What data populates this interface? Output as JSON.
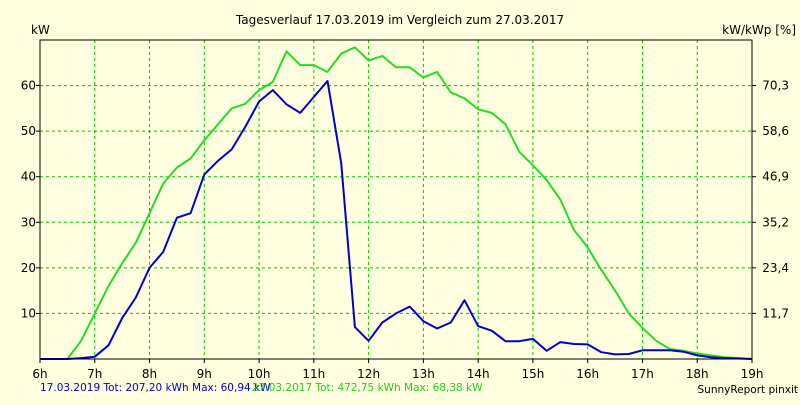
{
  "chart_data": {
    "type": "line",
    "title": "Tagesverlauf 17.03.2019 im Vergleich zum 27.03.2017",
    "ylabel_left": "kW",
    "ylabel_right": "kW/kWp [%]",
    "xlim": [
      6,
      19
    ],
    "ylim": [
      0,
      70
    ],
    "x_ticks": [
      6,
      7,
      8,
      9,
      10,
      11,
      12,
      13,
      14,
      15,
      16,
      17,
      18,
      19
    ],
    "x_tick_labels": [
      "6h",
      "7h",
      "8h",
      "9h",
      "10h",
      "11h",
      "12h",
      "13h",
      "14h",
      "15h",
      "16h",
      "17h",
      "18h",
      "19h"
    ],
    "y_ticks": [
      10,
      20,
      30,
      40,
      50,
      60
    ],
    "y_tick_labels": [
      "10",
      "20",
      "30",
      "40",
      "50",
      "60"
    ],
    "y2_ticks": [
      10,
      20,
      30,
      40,
      50,
      60
    ],
    "y2_tick_labels": [
      "11,7",
      "23,4",
      "35,2",
      "46,9",
      "58,6",
      "70,3"
    ],
    "grid": true,
    "colors": {
      "background": "#ffffe0",
      "grid": "#00c000",
      "series_2019": "#0000d0",
      "series_2017": "#22dd22"
    },
    "series": [
      {
        "name": "17.03.2019",
        "color": "#0000d0",
        "x": [
          6.0,
          6.25,
          6.5,
          6.75,
          7.0,
          7.25,
          7.5,
          7.75,
          8.0,
          8.25,
          8.5,
          8.75,
          9.0,
          9.25,
          9.5,
          9.75,
          10.0,
          10.25,
          10.5,
          10.75,
          11.0,
          11.25,
          11.5,
          11.75,
          12.0,
          12.25,
          12.5,
          12.75,
          13.0,
          13.25,
          13.5,
          13.75,
          14.0,
          14.25,
          14.5,
          14.75,
          15.0,
          15.25,
          15.5,
          15.75,
          16.0,
          16.25,
          16.5,
          16.75,
          17.0,
          17.25,
          17.5,
          17.75,
          18.0,
          18.25,
          18.5,
          18.75,
          19.0
        ],
        "values": [
          0,
          0,
          0,
          0.2,
          0.5,
          3,
          9,
          13.5,
          20,
          23.5,
          31,
          32,
          40.5,
          43.5,
          46,
          51,
          56.5,
          59,
          55.9,
          54,
          57.5,
          61,
          43,
          7,
          4,
          8,
          10,
          11.5,
          8.3,
          6.7,
          8,
          12.9,
          7.2,
          6.2,
          3.9,
          3.9,
          4.4,
          1.8,
          3.7,
          3.3,
          3.2,
          1.5,
          1,
          1.1,
          1.9,
          1.9,
          1.9,
          1.6,
          0.8,
          0.4,
          0.2,
          0.1,
          0
        ]
      },
      {
        "name": "27.03.2017",
        "color": "#22dd22",
        "x": [
          6.0,
          6.25,
          6.5,
          6.75,
          7.0,
          7.25,
          7.5,
          7.75,
          8.0,
          8.25,
          8.5,
          8.75,
          9.0,
          9.25,
          9.5,
          9.75,
          10.0,
          10.25,
          10.5,
          10.75,
          11.0,
          11.25,
          11.5,
          11.75,
          12.0,
          12.25,
          12.5,
          12.75,
          13.0,
          13.25,
          13.5,
          13.75,
          14.0,
          14.25,
          14.5,
          14.75,
          15.0,
          15.25,
          15.5,
          15.75,
          16.0,
          16.25,
          16.5,
          16.75,
          17.0,
          17.25,
          17.5,
          17.75,
          18.0,
          18.25,
          18.5,
          18.75,
          19.0
        ],
        "values": [
          0,
          0,
          0,
          4,
          10,
          16,
          21,
          25.5,
          32,
          38.5,
          42,
          44,
          48,
          51.5,
          55,
          56,
          59,
          60.8,
          67.5,
          64.5,
          64.5,
          63,
          67,
          68.4,
          65.5,
          66.5,
          64,
          64,
          61.8,
          63,
          58.5,
          57.2,
          54.8,
          54,
          51.5,
          45.5,
          42.5,
          39.3,
          35,
          28.3,
          24.5,
          19.5,
          15,
          10,
          6.8,
          4,
          2.2,
          1.8,
          1.2,
          0.8,
          0.4,
          0.2,
          0
        ]
      }
    ],
    "footer": {
      "summary_2019": "17.03.2019 Tot: 207,20 kWh Max: 60,94 kW",
      "summary_2017": "27.03.2017 Tot: 472,75 kWh Max: 68,38 kW",
      "credit": "SunnyReport pinxit"
    }
  }
}
